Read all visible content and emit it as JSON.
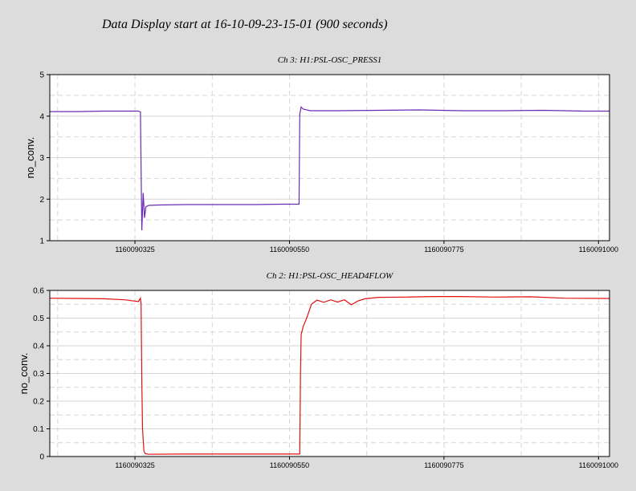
{
  "page": {
    "title": "Data Display start at 16-10-09-23-15-01 (900 seconds)"
  },
  "chart_data": [
    {
      "type": "line",
      "title": "Ch 3: H1:PSL-OSC_PRESS1",
      "ylabel": "no_conv.",
      "xlabel": "",
      "xlim": [
        1160090201,
        1160091016
      ],
      "ylim": [
        1,
        5
      ],
      "yticks": [
        1,
        2,
        3,
        4,
        5
      ],
      "xticks": [
        1160090325,
        1160090550,
        1160090775,
        1160091000
      ],
      "xtick_labels": [
        "1160090325",
        "1160090550",
        "1160090775",
        "1160091000"
      ],
      "grid": true,
      "color": "#6a2bb4",
      "series": [
        {
          "x": [
            1160090201,
            1160090240,
            1160090280,
            1160090310,
            1160090330,
            1160090333,
            1160090335,
            1160090337,
            1160090339,
            1160090341,
            1160090345,
            1160090360,
            1160090400,
            1160090450,
            1160090500,
            1160090540,
            1160090564,
            1160090565,
            1160090567,
            1160090570,
            1160090580,
            1160090620,
            1160090680,
            1160090740,
            1160090800,
            1160090860,
            1160090920,
            1160090980,
            1160091016
          ],
          "y": [
            4.11,
            4.11,
            4.12,
            4.12,
            4.12,
            4.1,
            1.25,
            2.15,
            1.55,
            1.82,
            1.85,
            1.86,
            1.87,
            1.87,
            1.87,
            1.88,
            1.88,
            4.05,
            4.22,
            4.17,
            4.13,
            4.13,
            4.14,
            4.15,
            4.13,
            4.13,
            4.14,
            4.12,
            4.12
          ]
        }
      ]
    },
    {
      "type": "line",
      "title": "Ch 2: H1:PSL-OSC_HEAD4FLOW",
      "ylabel": "no_conv.",
      "xlabel": "",
      "xlim": [
        1160090201,
        1160091016
      ],
      "ylim": [
        0,
        0.6
      ],
      "yticks": [
        0,
        0.1,
        0.2,
        0.3,
        0.4,
        0.5,
        0.6
      ],
      "xticks": [
        1160090325,
        1160090550,
        1160090775,
        1160091000
      ],
      "xtick_labels": [
        "1160090325",
        "1160090550",
        "1160090775",
        "1160091000"
      ],
      "grid": true,
      "color": "#e01010",
      "series": [
        {
          "x": [
            1160090201,
            1160090240,
            1160090280,
            1160090310,
            1160090330,
            1160090333,
            1160090334,
            1160090335,
            1160090336,
            1160090338,
            1160090340,
            1160090345,
            1160090400,
            1160090500,
            1160090565,
            1160090566,
            1160090567,
            1160090570,
            1160090575,
            1160090582,
            1160090590,
            1160090600,
            1160090610,
            1160090620,
            1160090630,
            1160090640,
            1160090650,
            1160090660,
            1160090680,
            1160090720,
            1160090760,
            1160090800,
            1160090850,
            1160090900,
            1160090950,
            1160091016
          ],
          "y": [
            0.572,
            0.571,
            0.57,
            0.566,
            0.56,
            0.572,
            0.55,
            0.27,
            0.1,
            0.02,
            0.01,
            0.008,
            0.009,
            0.009,
            0.009,
            0.3,
            0.44,
            0.47,
            0.5,
            0.55,
            0.565,
            0.557,
            0.566,
            0.558,
            0.566,
            0.548,
            0.562,
            0.57,
            0.575,
            0.576,
            0.578,
            0.578,
            0.576,
            0.577,
            0.572,
            0.571
          ]
        }
      ]
    }
  ]
}
